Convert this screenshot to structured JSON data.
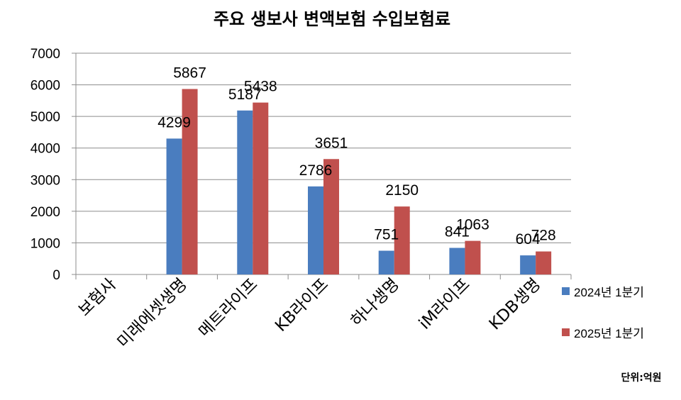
{
  "chart_data": {
    "type": "bar",
    "title": "주요 생보사 변액보험 수입보험료",
    "categories": [
      "보험사",
      "미래에셋생명",
      "메트라이프",
      "KB라이프",
      "하나생명",
      "iM라이프",
      "KDB생명"
    ],
    "series": [
      {
        "name": "2024년 1분기",
        "color": "#4a7dbf",
        "values": [
          null,
          4299,
          5187,
          2786,
          751,
          841,
          604
        ]
      },
      {
        "name": "2025년 1분기",
        "color": "#c0504d",
        "values": [
          null,
          5867,
          5438,
          3651,
          2150,
          1063,
          728
        ]
      }
    ],
    "ylim": [
      0,
      7000
    ],
    "yticks": [
      0,
      1000,
      2000,
      3000,
      4000,
      5000,
      6000,
      7000
    ],
    "grid": true,
    "legend_position": "right",
    "unit_note": "단위:억원",
    "xlabel": "",
    "ylabel": ""
  }
}
